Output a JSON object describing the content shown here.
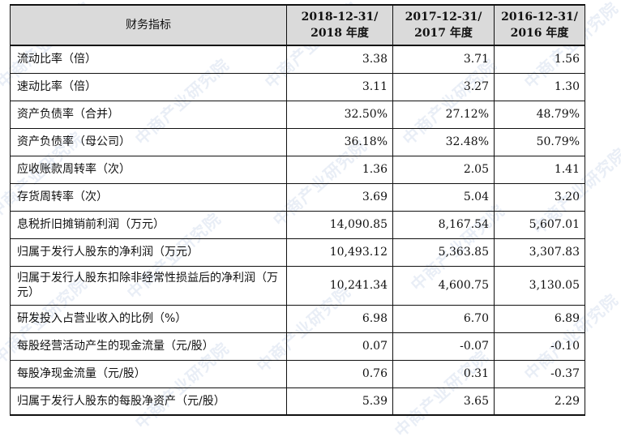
{
  "watermark": "中商产业研究院",
  "table": {
    "headers": [
      {
        "line1": "财务指标",
        "line2": ""
      },
      {
        "line1": "2018-12-31/",
        "line2": "2018 年度"
      },
      {
        "line1": "2017-12-31/",
        "line2": "2017 年度"
      },
      {
        "line1": "2016-12-31/",
        "line2": "2016 年度"
      }
    ],
    "rows": [
      {
        "label": "流动比率（倍）",
        "v2018": "3.38",
        "v2017": "3.71",
        "v2016": "1.56"
      },
      {
        "label": "速动比率（倍）",
        "v2018": "3.11",
        "v2017": "3.27",
        "v2016": "1.30"
      },
      {
        "label": "资产负债率（合并）",
        "v2018": "32.50%",
        "v2017": "27.12%",
        "v2016": "48.79%"
      },
      {
        "label": "资产负债率（母公司）",
        "v2018": "36.18%",
        "v2017": "32.48%",
        "v2016": "50.79%"
      },
      {
        "label": "应收账款周转率（次）",
        "v2018": "1.36",
        "v2017": "2.05",
        "v2016": "1.41"
      },
      {
        "label": "存货周转率（次）",
        "v2018": "3.69",
        "v2017": "5.04",
        "v2016": "3.20"
      },
      {
        "label": "息税折旧摊销前利润（万元）",
        "v2018": "14,090.85",
        "v2017": "8,167.54",
        "v2016": "5,607.01"
      },
      {
        "label": "归属于发行人股东的净利润（万元）",
        "v2018": "10,493.12",
        "v2017": "5,363.85",
        "v2016": "3,307.83"
      },
      {
        "label": "归属于发行人股东扣除非经常性损益后的净利润（万元）",
        "v2018": "10,241.34",
        "v2017": "4,600.75",
        "v2016": "3,130.05"
      },
      {
        "label": "研发投入占营业收入的比例（%）",
        "v2018": "6.98",
        "v2017": "6.70",
        "v2016": "6.89"
      },
      {
        "label": "每股经营活动产生的现金流量（元/股）",
        "v2018": "0.07",
        "v2017": "-0.07",
        "v2016": "-0.10"
      },
      {
        "label": "每股净现金流量（元/股）",
        "v2018": "0.76",
        "v2017": "0.31",
        "v2016": "-0.37"
      },
      {
        "label": "归属于发行人股东的每股净资产（元/股）",
        "v2018": "5.39",
        "v2017": "3.65",
        "v2016": "2.29"
      }
    ]
  }
}
